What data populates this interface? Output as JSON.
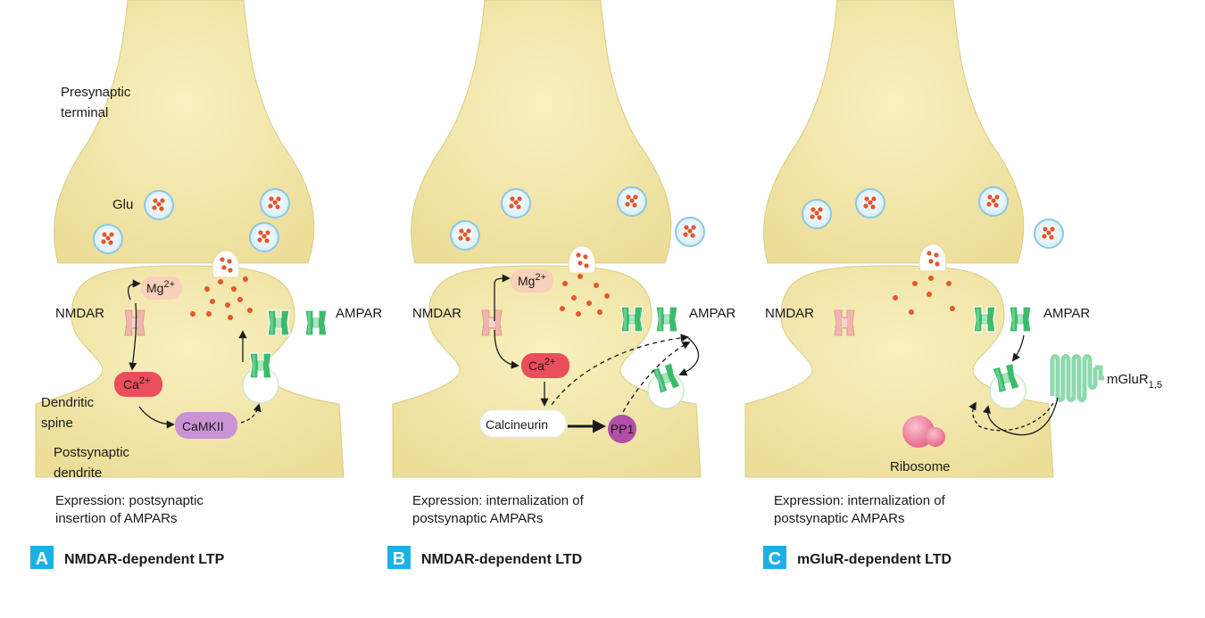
{
  "colors": {
    "membrane": "#f1e7a7",
    "membrane_edge": "#d9cc85",
    "vesicle": "#dff1f8",
    "vesicle_edge": "#8cc8e2",
    "glutamate": "#e2582c",
    "ampar": "#3dbb6d",
    "nmdar": "#f0b6ae",
    "ca": "#ea4d5c",
    "mg": "#f9d0ba",
    "camkii": "#c993d4",
    "pp1": "#b04ea8",
    "ribosome": "#f07a9a",
    "badge": "#1ab0e8"
  },
  "icons": [
    "vesicle-icon",
    "glutamate-dot-icon",
    "nmdar-receptor-icon",
    "ampar-receptor-icon",
    "mglur-receptor-icon",
    "ribosome-icon"
  ],
  "panel_a": {
    "letter": "A",
    "title": "NMDAR-dependent LTP",
    "presynaptic_label_line1": "Presynaptic",
    "presynaptic_label_line2": "terminal",
    "glu_label": "Glu",
    "nmdar_label": "NMDAR",
    "ampar_label": "AMPAR",
    "mg_label": "Mg",
    "mg_charge": "2+",
    "ca_label": "Ca",
    "ca_charge": "2+",
    "camkii_label": "CaMKII",
    "dendritic_spine_line1": "Dendritic",
    "dendritic_spine_line2": "spine",
    "postsynaptic_line1": "Postsynaptic",
    "postsynaptic_line2": "dendrite",
    "expression_line1": "Expression: postsynaptic",
    "expression_line2": "insertion of AMPARs"
  },
  "panel_b": {
    "letter": "B",
    "title": "NMDAR-dependent LTD",
    "nmdar_label": "NMDAR",
    "ampar_label": "AMPAR",
    "mg_label": "Mg",
    "mg_charge": "2+",
    "ca_label": "Ca",
    "ca_charge": "2+",
    "calcineurin_label": "Calcineurin",
    "pp1_label": "PP1",
    "expression_line1": "Expression: internalization of",
    "expression_line2": "postsynaptic AMPARs"
  },
  "panel_c": {
    "letter": "C",
    "title": "mGluR-dependent LTD",
    "nmdar_label": "NMDAR",
    "ampar_label": "AMPAR",
    "mglur_label": "mGluR",
    "mglur_sub": "1,5",
    "ribosome_label": "Ribosome",
    "expression_line1": "Expression: internalization of",
    "expression_line2": "postsynaptic AMPARs"
  }
}
